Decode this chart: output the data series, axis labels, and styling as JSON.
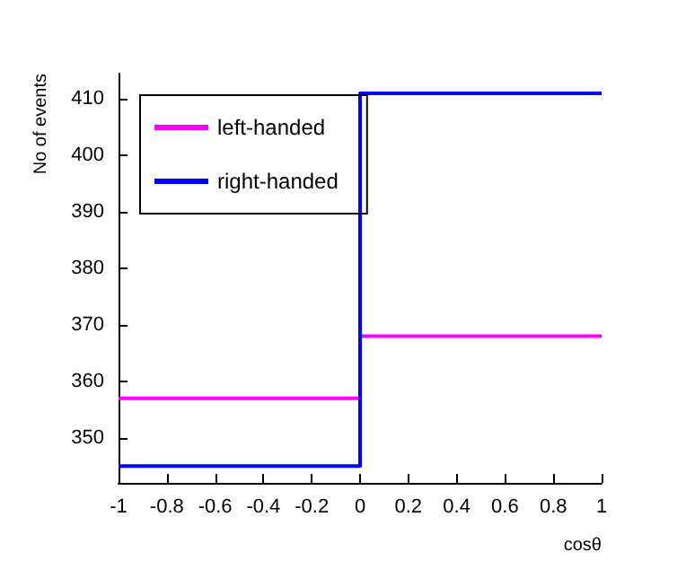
{
  "chart_data": {
    "type": "histogram",
    "xlabel": "cosθ",
    "ylabel": "No of events",
    "bins": [
      -1,
      0,
      1
    ],
    "series": [
      {
        "name": "left-handed",
        "color": "#ff00ff",
        "values": [
          357,
          368
        ]
      },
      {
        "name": "right-handed",
        "color": "#0000ff",
        "values": [
          345,
          411
        ]
      }
    ],
    "xlim": [
      -1,
      1
    ],
    "xticks": [
      -1,
      -0.8,
      -0.6,
      -0.4,
      -0.2,
      0,
      0.2,
      0.4,
      0.6,
      0.8,
      1
    ],
    "ylim": [
      342,
      414.5
    ],
    "yticks": [
      350,
      360,
      370,
      380,
      390,
      400,
      410
    ],
    "grid": false,
    "legend": "top left"
  }
}
